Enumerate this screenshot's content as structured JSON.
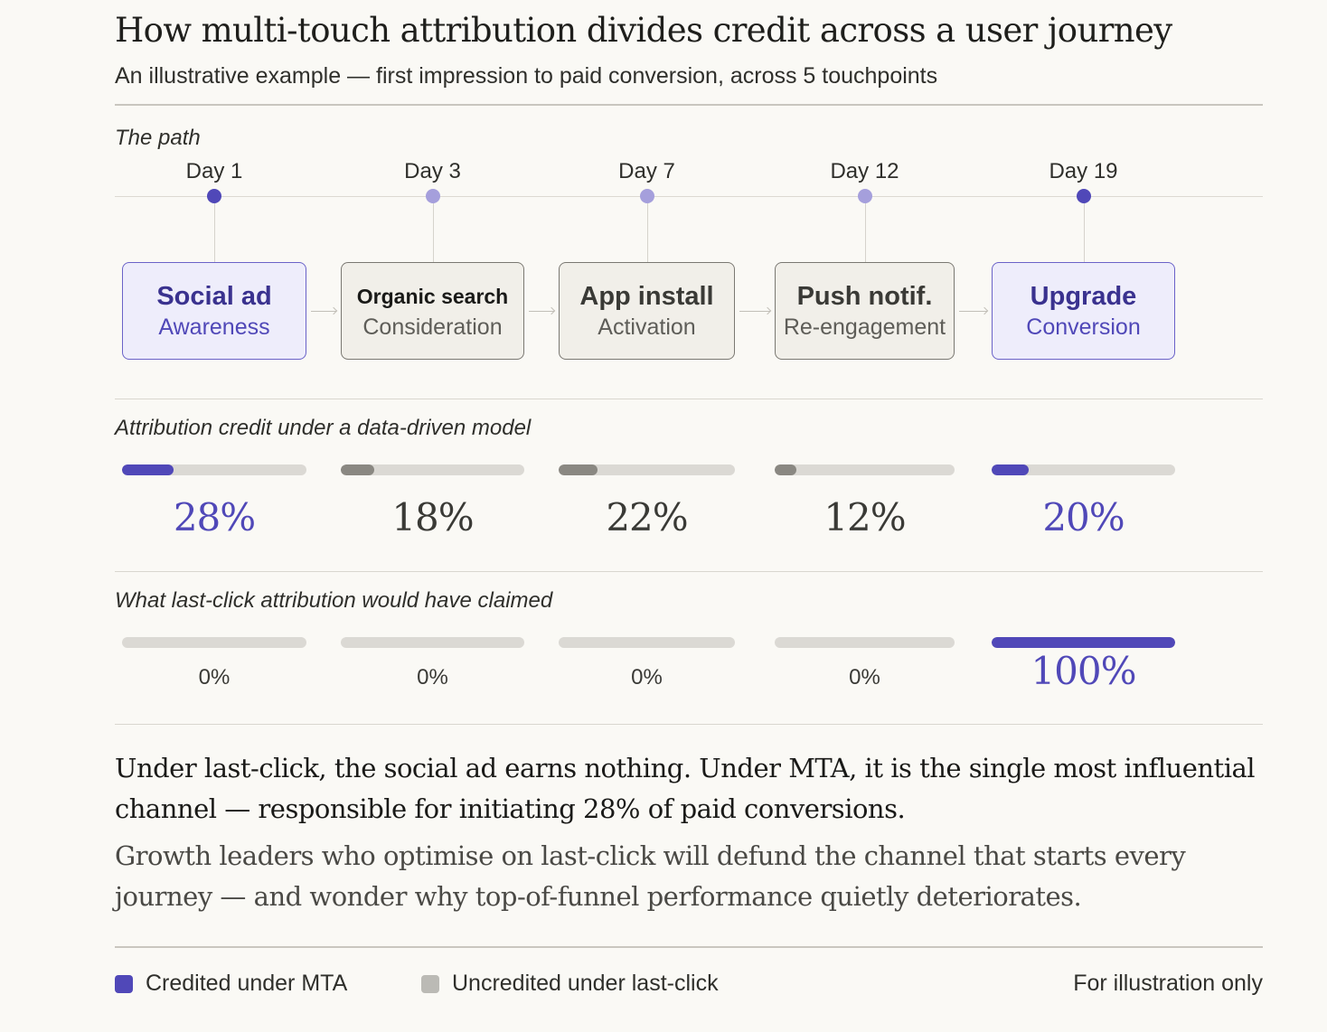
{
  "header": {
    "title": "How multi-touch attribution divides credit across a user journey",
    "subtitle": "An illustrative example — first impression to paid conversion, across 5 touchpoints"
  },
  "colors": {
    "accent": "#5048b8",
    "accent_light": "#a59fdc",
    "neutral_fill": "#8a8882",
    "track": "#dbd9d4",
    "background": "#faf9f5"
  },
  "path": {
    "label": "The path",
    "touchpoints": [
      {
        "day": "Day 1",
        "channel": "Social ad",
        "stage": "Awareness",
        "highlight": true
      },
      {
        "day": "Day 3",
        "channel": "Organic search",
        "stage": "Consideration",
        "highlight": false
      },
      {
        "day": "Day 7",
        "channel": "App install",
        "stage": "Activation",
        "highlight": false
      },
      {
        "day": "Day 12",
        "channel": "Push notif.",
        "stage": "Re-engagement",
        "highlight": false
      },
      {
        "day": "Day 19",
        "channel": "Upgrade",
        "stage": "Conversion",
        "highlight": true
      }
    ]
  },
  "mta": {
    "label": "Attribution credit under a data-driven model",
    "values": [
      28,
      18,
      22,
      12,
      20
    ],
    "labels": [
      "28%",
      "18%",
      "22%",
      "12%",
      "20%"
    ]
  },
  "last_click": {
    "label": "What last-click attribution would have claimed",
    "values": [
      0,
      0,
      0,
      0,
      100
    ],
    "labels": [
      "0%",
      "0%",
      "0%",
      "0%",
      "100%"
    ]
  },
  "conclusion": {
    "primary": "Under last-click, the social ad earns nothing. Under MTA, it is the single most influential channel — responsible for initiating 28% of paid conversions.",
    "secondary": "Growth leaders who optimise on last-click will defund the channel that starts every journey — and wonder why top-of-funnel performance quietly deteriorates."
  },
  "legend": {
    "items": [
      {
        "label": "Credited under MTA",
        "color": "#5048b8"
      },
      {
        "label": "Uncredited under last-click",
        "color": "#bbbab5"
      }
    ],
    "note": "For illustration only"
  }
}
